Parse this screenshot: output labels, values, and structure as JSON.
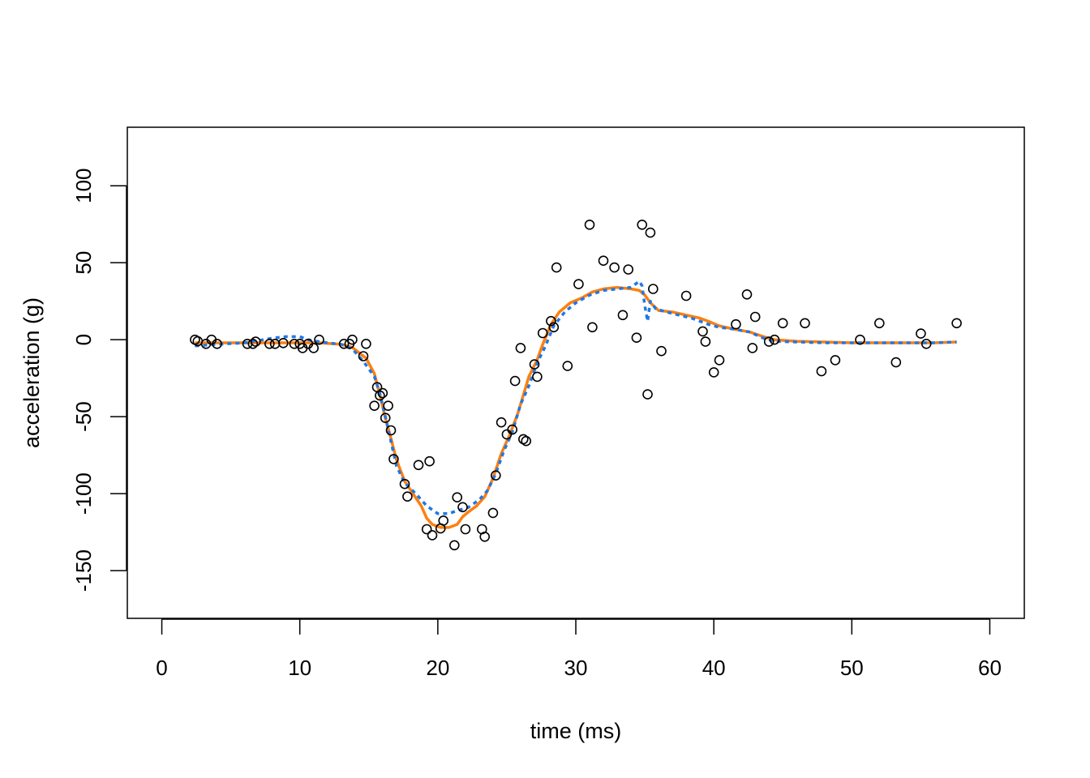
{
  "chart_data": {
    "type": "scatter",
    "xlabel": "time (ms)",
    "ylabel": "acceleration (g)",
    "xlim": [
      -2.5,
      62.5
    ],
    "ylim": [
      -181,
      138
    ],
    "xticks": [
      0,
      10,
      20,
      30,
      40,
      50,
      60
    ],
    "yticks": [
      -150,
      -100,
      -50,
      0,
      50,
      100
    ],
    "grid": false,
    "legend": "none",
    "colors": {
      "points": "#000000",
      "solid_line": "#FF7F0E",
      "dashed_line": "#1F78E6"
    },
    "points": [
      [
        2.4,
        0
      ],
      [
        2.6,
        -1
      ],
      [
        3.2,
        -2.7
      ],
      [
        3.6,
        0
      ],
      [
        4,
        -2.7
      ],
      [
        6.2,
        -2.7
      ],
      [
        6.6,
        -2.7
      ],
      [
        6.8,
        -1.3
      ],
      [
        7.8,
        -2.7
      ],
      [
        8.2,
        -2.7
      ],
      [
        8.8,
        -2.2
      ],
      [
        9.6,
        -2.7
      ],
      [
        10,
        -2.7
      ],
      [
        10.2,
        -5.4
      ],
      [
        10.6,
        -2.7
      ],
      [
        11,
        -5.4
      ],
      [
        11.4,
        0
      ],
      [
        13.2,
        -2.7
      ],
      [
        13.6,
        -2.7
      ],
      [
        13.8,
        0
      ],
      [
        14.6,
        -10.7
      ],
      [
        14.8,
        -2.7
      ],
      [
        15.4,
        -42.9
      ],
      [
        15.6,
        -30.8
      ],
      [
        15.8,
        -36.3
      ],
      [
        16,
        -34.7
      ],
      [
        16.2,
        -50.8
      ],
      [
        16.4,
        -42.9
      ],
      [
        16.6,
        -58.9
      ],
      [
        16.8,
        -77.5
      ],
      [
        17.6,
        -93.7
      ],
      [
        17.8,
        -101.9
      ],
      [
        18.6,
        -81.4
      ],
      [
        19.2,
        -123.1
      ],
      [
        19.4,
        -79
      ],
      [
        19.6,
        -127
      ],
      [
        20.2,
        -122.6
      ],
      [
        20.4,
        -117.5
      ],
      [
        21.2,
        -133.5
      ],
      [
        21.4,
        -102.4
      ],
      [
        21.8,
        -108.8
      ],
      [
        22,
        -123.1
      ],
      [
        23.2,
        -123.1
      ],
      [
        23.4,
        -128
      ],
      [
        24,
        -112.5
      ],
      [
        24.2,
        -88.2
      ],
      [
        24.6,
        -53.7
      ],
      [
        25,
        -61.5
      ],
      [
        25.4,
        -58.4
      ],
      [
        25.6,
        -26.8
      ],
      [
        26,
        -5.4
      ],
      [
        26.2,
        -64.6
      ],
      [
        26.4,
        -65.8
      ],
      [
        27,
        -16
      ],
      [
        27.2,
        -24.1
      ],
      [
        27.6,
        4.3
      ],
      [
        28.2,
        12.1
      ],
      [
        28.4,
        8.1
      ],
      [
        28.6,
        46.9
      ],
      [
        29.4,
        -17.1
      ],
      [
        30.2,
        36.1
      ],
      [
        31,
        74.7
      ],
      [
        31.2,
        8.1
      ],
      [
        32,
        51.3
      ],
      [
        32.8,
        46.9
      ],
      [
        33.4,
        16
      ],
      [
        33.8,
        45.6
      ],
      [
        34.4,
        1.3
      ],
      [
        34.8,
        74.7
      ],
      [
        35.2,
        -35.5
      ],
      [
        35.4,
        69.5
      ],
      [
        35.6,
        33
      ],
      [
        36.2,
        -7.4
      ],
      [
        38,
        28.5
      ],
      [
        39.2,
        5.4
      ],
      [
        39.4,
        -1.3
      ],
      [
        40,
        -21.2
      ],
      [
        40.4,
        -13.3
      ],
      [
        41.6,
        10
      ],
      [
        42.4,
        29.4
      ],
      [
        42.8,
        -5.4
      ],
      [
        43,
        14.8
      ],
      [
        44,
        -1.3
      ],
      [
        44.4,
        0
      ],
      [
        45,
        10.7
      ],
      [
        46.6,
        10.7
      ],
      [
        47.8,
        -20.5
      ],
      [
        48.8,
        -13.3
      ],
      [
        50.6,
        0
      ],
      [
        52,
        10.7
      ],
      [
        53.2,
        -14.7
      ],
      [
        55,
        4
      ],
      [
        55.4,
        -2.7
      ],
      [
        57.6,
        10.7
      ]
    ],
    "series": [
      {
        "style": "solid",
        "x": [
          2.4,
          5,
          8,
          10,
          11.4,
          13,
          13.8,
          14.8,
          15.4,
          15.8,
          16.2,
          16.6,
          17,
          17.6,
          18.2,
          18.8,
          19.2,
          19.6,
          20.2,
          20.8,
          21.4,
          21.8,
          22.2,
          22.8,
          23.4,
          24,
          24.6,
          25.2,
          25.8,
          26.2,
          26.6,
          27.2,
          27.6,
          28.2,
          28.8,
          29.6,
          30.4,
          31.2,
          32,
          33,
          34,
          34.6,
          35,
          35.4,
          36,
          37,
          38,
          39,
          39.6,
          40.4,
          41.4,
          42.6,
          43.6,
          44.4,
          46,
          48,
          50,
          52,
          54,
          56,
          57.6
        ],
        "y": [
          -2,
          -2,
          -2,
          -2,
          -2,
          -3,
          -5,
          -12,
          -22,
          -36,
          -51,
          -64,
          -78,
          -92,
          -100,
          -108,
          -116,
          -120,
          -122,
          -122,
          -120,
          -115,
          -112,
          -108,
          -102,
          -90,
          -74,
          -62,
          -48,
          -36,
          -24,
          -13,
          -3,
          10,
          18,
          24,
          27,
          31,
          33,
          34,
          33,
          32,
          29,
          24,
          19,
          18,
          16,
          14,
          12,
          9,
          7,
          5,
          2,
          0,
          -1,
          -1.5,
          -2,
          -2,
          -2,
          -2,
          -1.5
        ]
      },
      {
        "style": "dashed",
        "x": [
          2.4,
          4,
          6,
          8,
          9,
          10,
          10.6,
          11.2,
          12,
          13,
          13.8,
          14.6,
          15.4,
          15.8,
          16.2,
          16.6,
          17,
          17.6,
          18.4,
          19.2,
          20,
          20.8,
          21.4,
          22.2,
          23,
          23.6,
          24.2,
          24.8,
          25.4,
          26,
          26.6,
          27.2,
          27.8,
          28.4,
          29.2,
          30,
          31,
          32,
          33,
          34,
          34.6,
          34.8,
          35,
          35.2,
          35.4,
          35.8,
          37,
          38.4,
          39.6,
          40.4,
          41.4,
          42.6,
          43.6,
          44.4,
          46,
          48,
          50,
          52,
          54,
          56,
          57.6
        ],
        "y": [
          -4,
          -3,
          -2,
          1,
          2,
          2,
          0,
          -1,
          -2,
          -3,
          -6,
          -14,
          -24,
          -35,
          -50,
          -66,
          -82,
          -93,
          -100,
          -108,
          -113,
          -113,
          -111,
          -109,
          -104,
          -98,
          -87,
          -72,
          -60,
          -42,
          -30,
          -15,
          -4,
          9,
          18,
          24,
          29,
          32,
          33,
          34,
          38,
          35,
          22,
          12,
          25,
          20,
          17,
          14,
          10,
          8,
          7,
          5,
          1,
          -1,
          -1.5,
          -2,
          -2,
          -2,
          -2,
          -2,
          -1.5
        ]
      }
    ]
  }
}
